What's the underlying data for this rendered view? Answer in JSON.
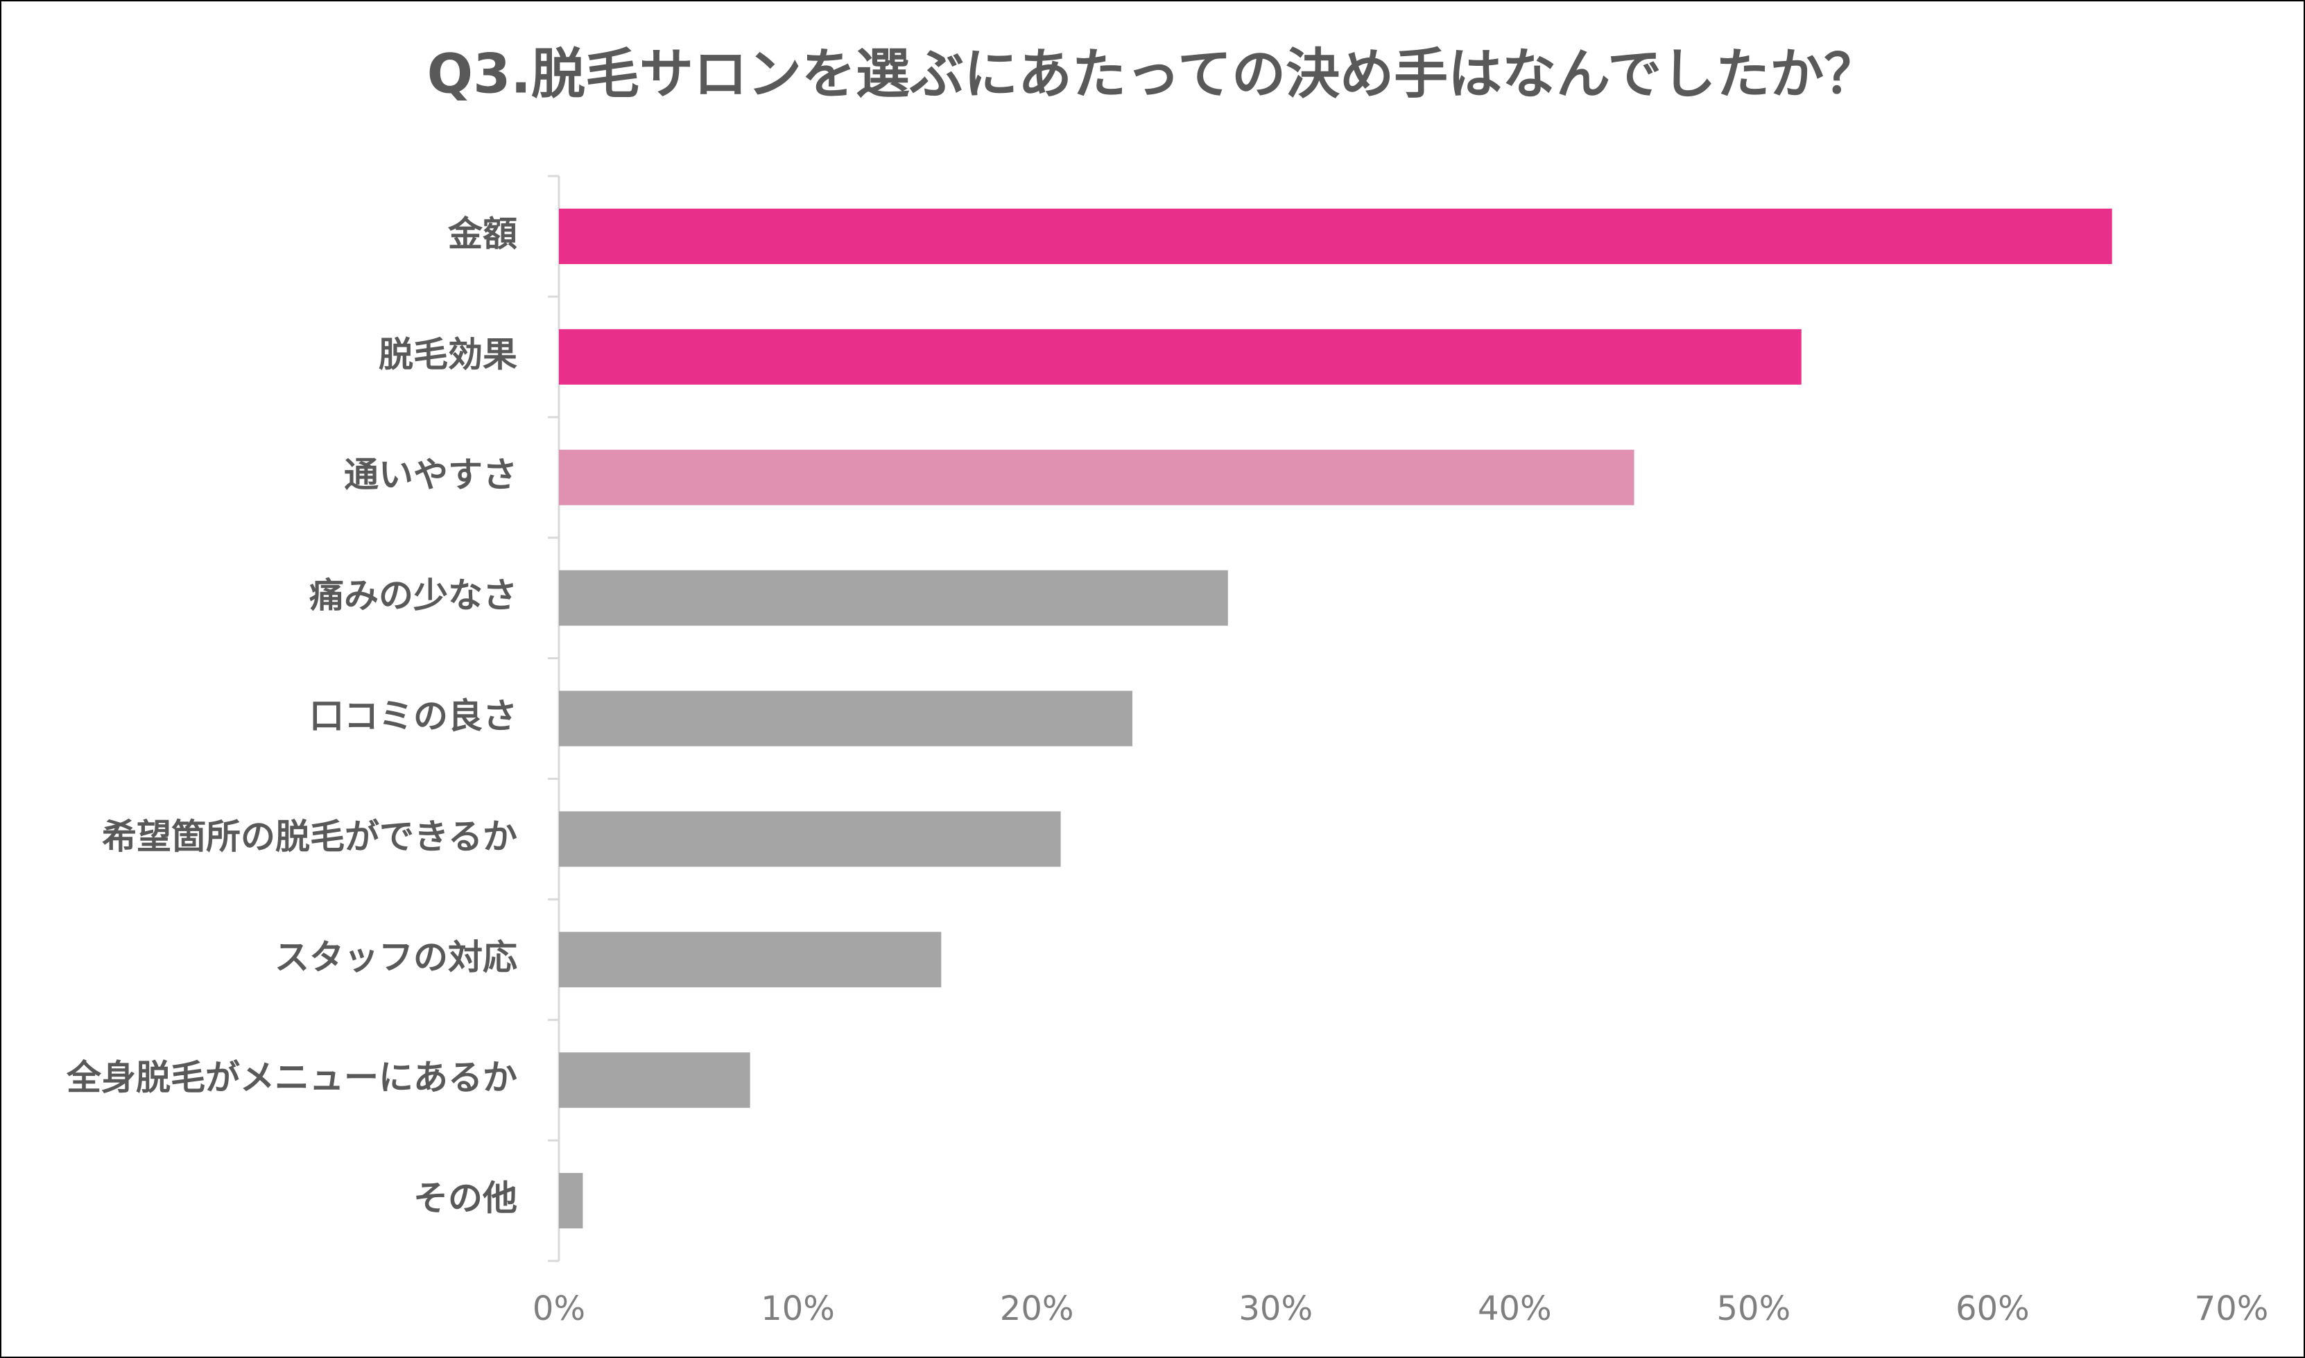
{
  "chart_data": {
    "type": "hbar",
    "title": "Q3.脱毛サロンを選ぶにあたっての決め手はなんでしたか？",
    "categories": [
      "金額",
      "脱毛効果",
      "通いやすさ",
      "痛みの少なさ",
      "口コミの良さ",
      "希望箇所の脱毛ができるか",
      "スタッフの対応",
      "全身脱毛がメニューにあるか",
      "その他"
    ],
    "values": [
      65,
      52,
      45,
      28,
      24,
      21,
      16,
      8,
      1
    ],
    "colors": [
      "#e8308a",
      "#e8308a",
      "#e090b0",
      "#a5a5a5",
      "#a5a5a5",
      "#a5a5a5",
      "#a5a5a5",
      "#a5a5a5",
      "#a5a5a5"
    ],
    "xlim": [
      0,
      70
    ],
    "xticks": [
      {
        "value": 0,
        "label": "0%"
      },
      {
        "value": 10,
        "label": "10%"
      },
      {
        "value": 20,
        "label": "20%"
      },
      {
        "value": 30,
        "label": "30%"
      },
      {
        "value": 40,
        "label": "40%"
      },
      {
        "value": 50,
        "label": "50%"
      },
      {
        "value": 60,
        "label": "60%"
      },
      {
        "value": 70,
        "label": "70%"
      }
    ],
    "grid": false
  }
}
